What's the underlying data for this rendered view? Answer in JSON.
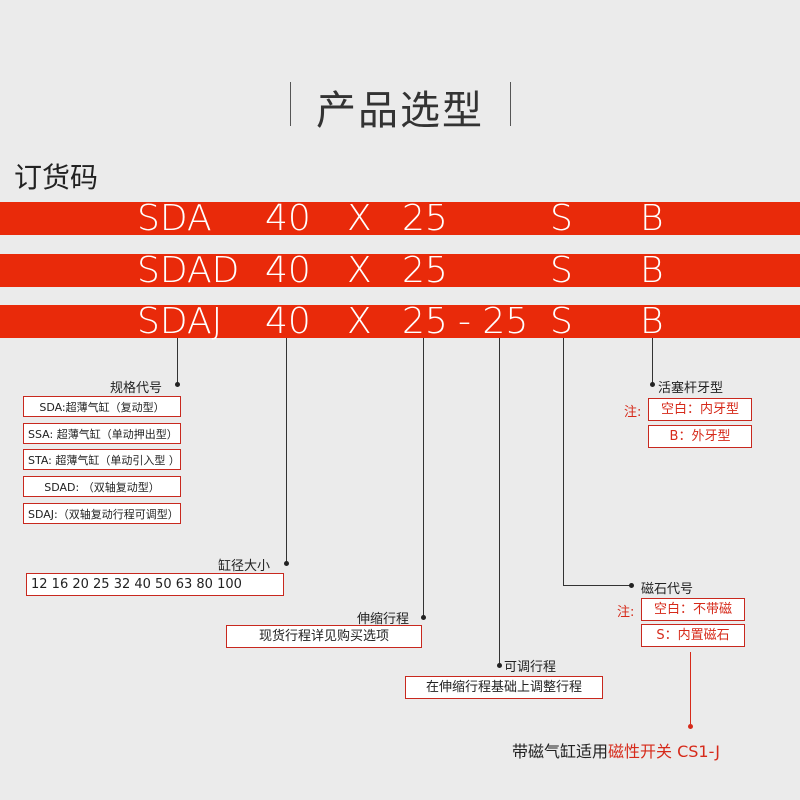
{
  "header": {
    "title": "产品选型"
  },
  "order": {
    "title": "订货码"
  },
  "rows": [
    {
      "model": "SDA",
      "bore": "40",
      "x": "X",
      "stroke": "25",
      "adjust": "",
      "magnet": "S",
      "thread": "B"
    },
    {
      "model": "SDAD",
      "bore": "40",
      "x": "X",
      "stroke": "25",
      "adjust": "",
      "magnet": "S",
      "thread": "B"
    },
    {
      "model": "SDAJ",
      "bore": "40",
      "x": "X",
      "stroke": "25",
      "adjust": "- 25",
      "magnet": "S",
      "thread": "B"
    }
  ],
  "spec": {
    "label": "规格代号",
    "items": [
      "SDA:超薄气缸（复动型）",
      "SSA: 超薄气缸（单动押出型）",
      "STA: 超薄气缸（单动引入型 ）",
      "SDAD: （双轴复动型）",
      "SDAJ:（双轴复动行程可调型）"
    ]
  },
  "bore": {
    "label": "缸径大小",
    "values": "12  16  20  25  32  40  50  63  80  100"
  },
  "stroke": {
    "label": "伸缩行程",
    "value": "现货行程详见购买选项"
  },
  "adjust": {
    "label": "可调行程",
    "value": "在伸缩行程基础上调整行程"
  },
  "magnet": {
    "label": "磁石代号",
    "note": "注:",
    "items": [
      "空白：不带磁",
      "S：内置磁石"
    ]
  },
  "thread": {
    "label": "活塞杆牙型",
    "note": "注:",
    "items": [
      "空白：内牙型",
      "B：外牙型"
    ]
  },
  "footer": {
    "text": "带磁气缸适用",
    "highlight": "磁性开关 CS1-J"
  },
  "colors": {
    "band": "#e92a0a",
    "accent": "#d62a1a",
    "background": "#ebebeb"
  }
}
